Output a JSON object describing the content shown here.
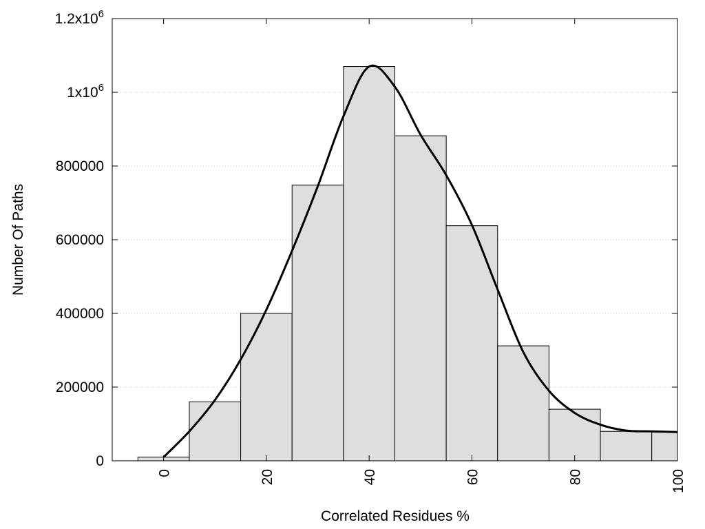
{
  "chart_data": {
    "type": "bar",
    "xlabel": "Correlated Residues %",
    "ylabel": "Number Of Paths",
    "xlim": [
      -10,
      100
    ],
    "ylim": [
      0,
      1200000
    ],
    "x_ticks": [
      {
        "value": 0,
        "label": "0"
      },
      {
        "value": 20,
        "label": "20"
      },
      {
        "value": 40,
        "label": "40"
      },
      {
        "value": 60,
        "label": "60"
      },
      {
        "value": 80,
        "label": "80"
      },
      {
        "value": 100,
        "label": "100"
      }
    ],
    "y_ticks": [
      {
        "value": 0,
        "label": "0",
        "sup": ""
      },
      {
        "value": 200000,
        "label": "200000",
        "sup": ""
      },
      {
        "value": 400000,
        "label": "400000",
        "sup": ""
      },
      {
        "value": 600000,
        "label": "600000",
        "sup": ""
      },
      {
        "value": 800000,
        "label": "800000",
        "sup": ""
      },
      {
        "value": 1000000,
        "label": "1x10",
        "sup": "6"
      },
      {
        "value": 1200000,
        "label": "1.2x10",
        "sup": "6"
      }
    ],
    "grid": true,
    "bin_width": 10,
    "x": [
      0,
      10,
      20,
      30,
      40,
      50,
      60,
      70,
      80,
      90,
      100
    ],
    "values": [
      10000,
      160000,
      400000,
      748000,
      1070000,
      882000,
      638000,
      312000,
      140000,
      80000,
      78000
    ],
    "curve": [
      [
        0,
        10000
      ],
      [
        5,
        80000
      ],
      [
        10,
        165000
      ],
      [
        15,
        275000
      ],
      [
        20,
        410000
      ],
      [
        25,
        570000
      ],
      [
        30,
        745000
      ],
      [
        35,
        935000
      ],
      [
        40,
        1070000
      ],
      [
        45,
        1015000
      ],
      [
        50,
        885000
      ],
      [
        55,
        775000
      ],
      [
        60,
        640000
      ],
      [
        65,
        465000
      ],
      [
        70,
        295000
      ],
      [
        75,
        190000
      ],
      [
        80,
        130000
      ],
      [
        85,
        98000
      ],
      [
        90,
        82000
      ],
      [
        95,
        80000
      ],
      [
        100,
        78000
      ]
    ]
  }
}
